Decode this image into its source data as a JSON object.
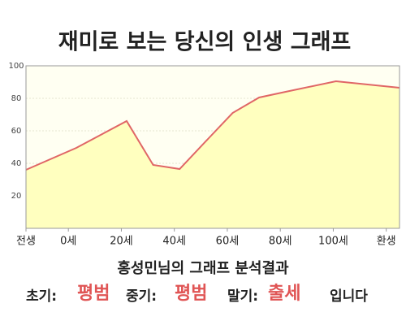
{
  "chart_data": {
    "type": "area",
    "title": "재미로 보는 당신의 인생 그래프",
    "x": [
      -16,
      3,
      22,
      32,
      42,
      53,
      62,
      72,
      82,
      101,
      125
    ],
    "series": [
      {
        "color": "#e06666",
        "fill": "#ffffbf",
        "values": [
          36,
          49.5,
          66,
          39,
          36.5,
          55.5,
          71,
          80.5,
          84,
          90.5,
          86.5
        ]
      }
    ],
    "xlim": [
      -16,
      125
    ],
    "xticks": [
      {
        "value": -16,
        "label": "전생"
      },
      {
        "value": 0,
        "label": "0세"
      },
      {
        "value": 20,
        "label": "20세"
      },
      {
        "value": 40,
        "label": "40세"
      },
      {
        "value": 60,
        "label": "60세"
      },
      {
        "value": 80,
        "label": "80세"
      },
      {
        "value": 100,
        "label": "100세"
      },
      {
        "value": 120,
        "label": "환생"
      }
    ],
    "ylim": [
      0,
      100
    ],
    "yticks": [
      20,
      40,
      60,
      80,
      100
    ],
    "grid": true
  },
  "result": {
    "heading": "홍성민님의 그래프 분석결과",
    "items": [
      {
        "label": "초기:",
        "value": "평범"
      },
      {
        "label": "중기:",
        "value": "평범"
      },
      {
        "label": "말기:",
        "value": "출세"
      }
    ],
    "ending": "입니다"
  }
}
